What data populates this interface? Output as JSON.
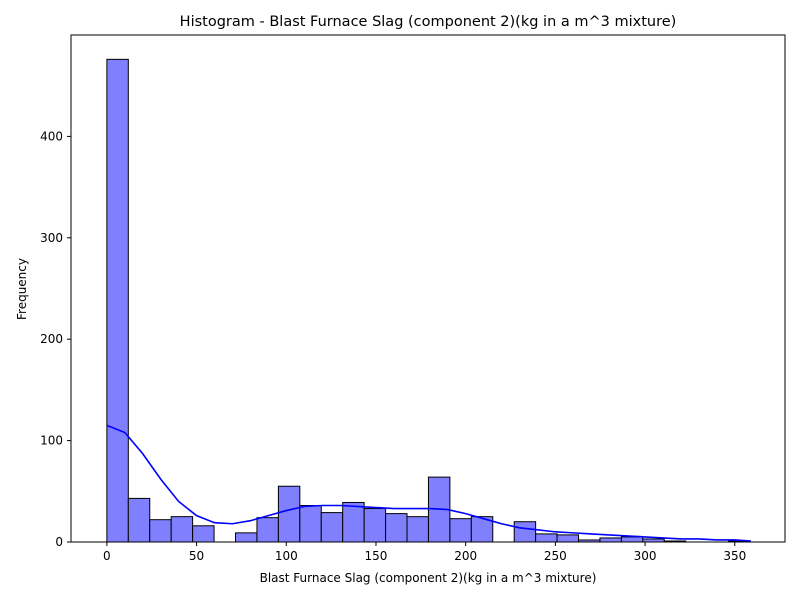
{
  "chart_data": {
    "type": "bar",
    "title": "Histogram - Blast Furnace Slag (component 2)(kg in a m^3 mixture)",
    "xlabel": "Blast Furnace Slag (component 2)(kg in a m^3 mixture)",
    "ylabel": "Frequency",
    "xlim": [
      -20,
      378
    ],
    "ylim": [
      0,
      500
    ],
    "xticks": [
      0,
      50,
      100,
      150,
      200,
      250,
      300,
      350
    ],
    "yticks": [
      0,
      100,
      200,
      300,
      400
    ],
    "grid": false,
    "bin_width": 11.95,
    "bins": [
      {
        "start": 0.0,
        "count": 476
      },
      {
        "start": 11.95,
        "count": 43
      },
      {
        "start": 23.9,
        "count": 22
      },
      {
        "start": 35.85,
        "count": 25
      },
      {
        "start": 47.8,
        "count": 16
      },
      {
        "start": 59.75,
        "count": 0
      },
      {
        "start": 71.7,
        "count": 9
      },
      {
        "start": 83.65,
        "count": 24
      },
      {
        "start": 95.6,
        "count": 55
      },
      {
        "start": 107.55,
        "count": 36
      },
      {
        "start": 119.5,
        "count": 29
      },
      {
        "start": 131.45,
        "count": 39
      },
      {
        "start": 143.4,
        "count": 33
      },
      {
        "start": 155.35,
        "count": 28
      },
      {
        "start": 167.3,
        "count": 25
      },
      {
        "start": 179.25,
        "count": 64
      },
      {
        "start": 191.2,
        "count": 23
      },
      {
        "start": 203.15,
        "count": 25
      },
      {
        "start": 215.1,
        "count": 0
      },
      {
        "start": 227.05,
        "count": 20
      },
      {
        "start": 239.0,
        "count": 8
      },
      {
        "start": 250.95,
        "count": 7
      },
      {
        "start": 262.9,
        "count": 2
      },
      {
        "start": 274.85,
        "count": 4
      },
      {
        "start": 286.8,
        "count": 5
      },
      {
        "start": 298.75,
        "count": 3
      },
      {
        "start": 310.7,
        "count": 1
      },
      {
        "start": 322.65,
        "count": 0
      },
      {
        "start": 334.6,
        "count": 0
      },
      {
        "start": 346.55,
        "count": 1
      }
    ],
    "kde": {
      "x": [
        0,
        10,
        20,
        30,
        40,
        50,
        60,
        70,
        80,
        90,
        100,
        110,
        120,
        130,
        140,
        150,
        160,
        170,
        180,
        190,
        200,
        210,
        220,
        230,
        240,
        250,
        260,
        270,
        280,
        290,
        300,
        310,
        320,
        330,
        340,
        350,
        359
      ],
      "y": [
        115,
        108,
        87,
        62,
        40,
        26,
        19,
        18,
        21,
        26,
        31,
        35,
        36,
        36,
        35,
        34,
        33,
        33,
        33,
        32,
        28,
        23,
        18,
        14,
        12,
        10,
        9,
        8,
        7,
        6,
        5,
        4,
        3,
        3,
        2,
        2,
        1
      ]
    },
    "colors": {
      "bar_fill": "#8080ff",
      "bar_edge": "#000000",
      "kde_line": "#0000ff"
    }
  }
}
